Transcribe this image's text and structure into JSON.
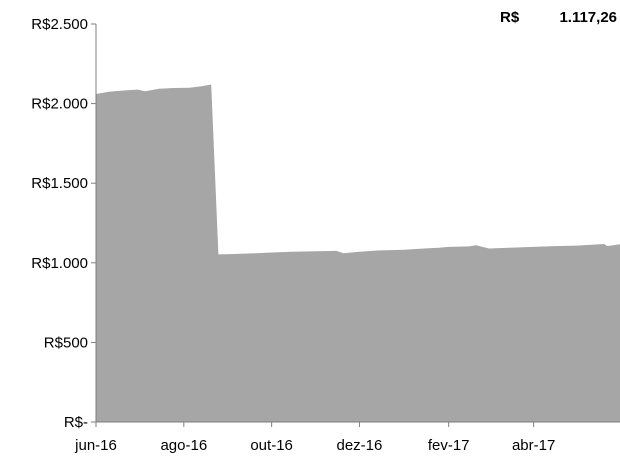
{
  "chart_data": {
    "type": "area",
    "title": "",
    "xlabel": "",
    "ylabel": "",
    "annotation": {
      "currency": "R$",
      "value": "1.117,26"
    },
    "ylim": [
      0,
      2500
    ],
    "xlim": [
      "2016-06-01",
      "2017-05-31"
    ],
    "y_ticks": [
      {
        "value": 0,
        "label": "R$-"
      },
      {
        "value": 500,
        "label": "R$500"
      },
      {
        "value": 1000,
        "label": "R$1.000"
      },
      {
        "value": 1500,
        "label": "R$1.500"
      },
      {
        "value": 2000,
        "label": "R$2.000"
      },
      {
        "value": 2500,
        "label": "R$2.500"
      }
    ],
    "x_ticks": [
      {
        "date": "2016-06-01",
        "label": "jun-16"
      },
      {
        "date": "2016-08-01",
        "label": "ago-16"
      },
      {
        "date": "2016-10-01",
        "label": "out-16"
      },
      {
        "date": "2016-12-01",
        "label": "dez-16"
      },
      {
        "date": "2017-02-01",
        "label": "fev-17"
      },
      {
        "date": "2017-04-01",
        "label": "abr-17"
      }
    ],
    "fill_color": "#a6a6a6",
    "grid": false,
    "series": [
      {
        "x": [
          "2016-06-01",
          "2016-06-10",
          "2016-06-20",
          "2016-06-30",
          "2016-07-05",
          "2016-07-15",
          "2016-07-25",
          "2016-08-05",
          "2016-08-14",
          "2016-08-20",
          "2016-08-25",
          "2016-09-05",
          "2016-09-20",
          "2016-10-01",
          "2016-10-15",
          "2016-11-01",
          "2016-11-15",
          "2016-11-20",
          "2016-12-01",
          "2016-12-15",
          "2017-01-01",
          "2017-01-15",
          "2017-01-25",
          "2017-02-01",
          "2017-02-15",
          "2017-02-20",
          "2017-03-01",
          "2017-03-15",
          "2017-04-01",
          "2017-04-15",
          "2017-05-01",
          "2017-05-20",
          "2017-05-22",
          "2017-05-31"
        ],
        "values": [
          2060,
          2075,
          2082,
          2088,
          2078,
          2093,
          2098,
          2100,
          2110,
          2120,
          1053,
          1055,
          1060,
          1065,
          1070,
          1073,
          1075,
          1060,
          1070,
          1078,
          1082,
          1090,
          1095,
          1100,
          1103,
          1110,
          1090,
          1095,
          1100,
          1105,
          1108,
          1118,
          1105,
          1117
        ]
      }
    ]
  }
}
